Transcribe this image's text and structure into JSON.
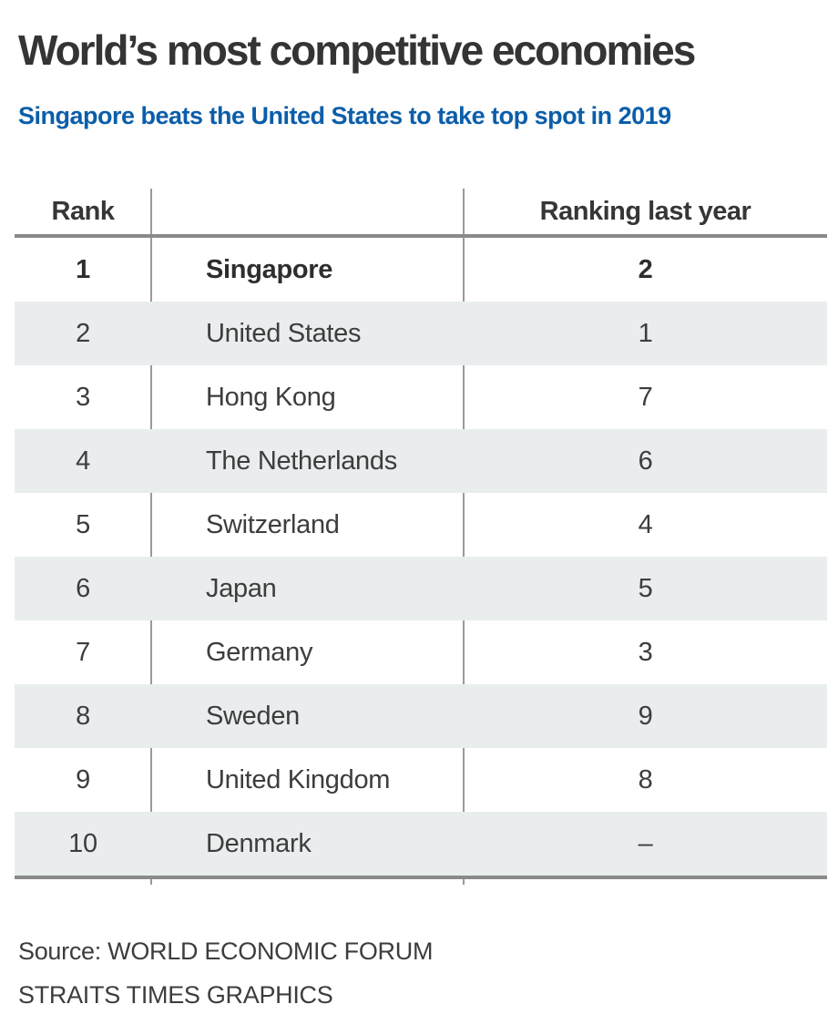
{
  "header": {
    "title": "World’s most competitive economies",
    "subtitle": "Singapore beats the United States to take top spot in 2019"
  },
  "table": {
    "columns": [
      "Rank",
      "",
      "Ranking last year"
    ],
    "rows": [
      {
        "rank": "1",
        "country": "Singapore",
        "last_year": "2",
        "highlight": true
      },
      {
        "rank": "2",
        "country": "United States",
        "last_year": "1"
      },
      {
        "rank": "3",
        "country": "Hong Kong",
        "last_year": "7"
      },
      {
        "rank": "4",
        "country": "The Netherlands",
        "last_year": "6"
      },
      {
        "rank": "5",
        "country": "Switzerland",
        "last_year": "4"
      },
      {
        "rank": "6",
        "country": "Japan",
        "last_year": "5"
      },
      {
        "rank": "7",
        "country": "Germany",
        "last_year": "3"
      },
      {
        "rank": "8",
        "country": "Sweden",
        "last_year": "9"
      },
      {
        "rank": "9",
        "country": "United Kingdom",
        "last_year": "8"
      },
      {
        "rank": "10",
        "country": "Denmark",
        "last_year": "–"
      }
    ]
  },
  "footer": {
    "source": "Source: WORLD ECONOMIC FORUM",
    "credit": "STRAITS TIMES GRAPHICS"
  },
  "colors": {
    "accent_blue": "#0b5ea9",
    "title_dark": "#343434",
    "body_text": "#3d3d3d",
    "row_alt_bg": "#e9edee",
    "rule_gray": "#8a8a8a",
    "divider_gray": "#9a9a9a"
  },
  "chart_data": {
    "type": "table",
    "title": "World’s most competitive economies",
    "subtitle": "Singapore beats the United States to take top spot in 2019",
    "columns": [
      "Rank",
      "",
      "Ranking last year"
    ],
    "rows": [
      [
        1,
        "Singapore",
        2
      ],
      [
        2,
        "United States",
        1
      ],
      [
        3,
        "Hong Kong",
        7
      ],
      [
        4,
        "The Netherlands",
        6
      ],
      [
        5,
        "Switzerland",
        4
      ],
      [
        6,
        "Japan",
        5
      ],
      [
        7,
        "Germany",
        3
      ],
      [
        8,
        "Sweden",
        9
      ],
      [
        9,
        "United Kingdom",
        8
      ],
      [
        10,
        "Denmark",
        "–"
      ]
    ],
    "highlighted_row": 1,
    "source": "Source: WORLD ECONOMIC FORUM",
    "credit": "STRAITS TIMES GRAPHICS",
    "layout": {
      "alternating_row_shading": true,
      "shaded_rows": "even ranks"
    }
  }
}
